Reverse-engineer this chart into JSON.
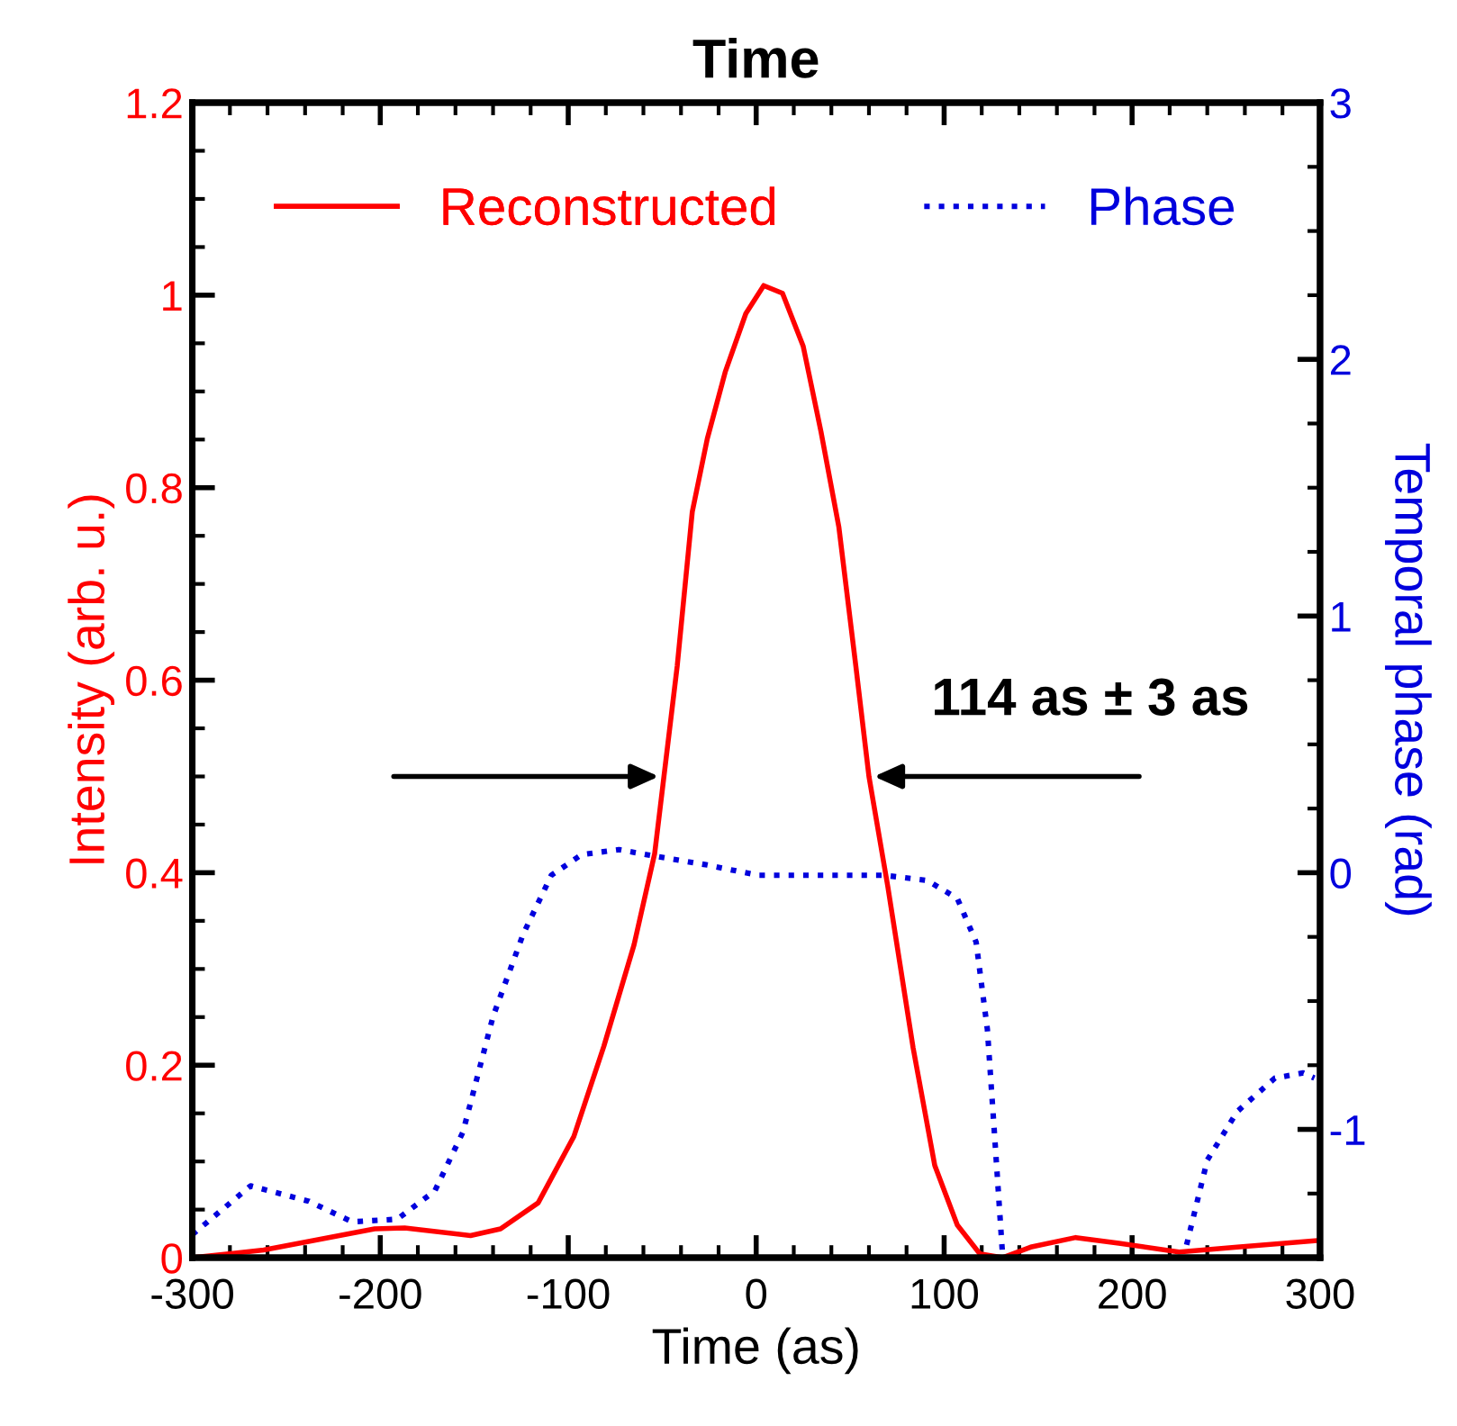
{
  "chart_data": {
    "type": "line",
    "title": "Time",
    "xlabel": "Time (as)",
    "ylabel": "Intensity (arb. u.)",
    "y2label": "Temporal phase (rad)",
    "xlim": [
      -300,
      300
    ],
    "xticks": [
      -300,
      -200,
      -100,
      0,
      100,
      200,
      300
    ],
    "ylim": [
      0,
      1.2
    ],
    "yticks": [
      0,
      0.2,
      0.4,
      0.6,
      0.8,
      1,
      1.2
    ],
    "y2lim": [
      -1.5,
      3
    ],
    "y2ticks": [
      -1,
      0,
      1,
      2,
      3
    ],
    "legend": "top",
    "grid": false,
    "annotations": [
      {
        "text": "114 as ± 3 as",
        "x": 60,
        "y": 0.5
      }
    ],
    "series": [
      {
        "name": "Reconstructed",
        "color": "#ff0000",
        "line_style": "solid",
        "x": [
          -300,
          -262,
          -203,
          -187,
          -152,
          -136,
          -116,
          -97,
          -81,
          -65,
          -54,
          -42,
          -34,
          -26,
          -16.5,
          -5.5,
          4,
          14,
          25,
          34.5,
          44,
          53,
          60,
          70,
          83.5,
          95,
          107,
          119,
          131,
          146,
          170,
          193,
          225,
          256,
          300
        ],
        "values": [
          0,
          0.008,
          0.03,
          0.031,
          0.023,
          0.03,
          0.057,
          0.126,
          0.22,
          0.325,
          0.42,
          0.615,
          0.775,
          0.851,
          0.92,
          0.981,
          1.01,
          1.002,
          0.947,
          0.858,
          0.759,
          0.615,
          0.5,
          0.386,
          0.218,
          0.096,
          0.034,
          0.004,
          0,
          0.011,
          0.021,
          0.015,
          0.006,
          0.011,
          0.018
        ]
      },
      {
        "name": "Phase",
        "color": "#0000dd",
        "line_style": "dotted",
        "axis": "y2",
        "x": [
          -300,
          -269,
          -238,
          -215,
          -191,
          -171,
          -156,
          -140,
          -124,
          -109,
          -93,
          -73,
          -58,
          -26,
          1,
          36,
          68,
          91,
          107,
          117,
          123,
          127,
          131,
          180,
          229,
          240,
          256,
          276,
          291,
          297
        ],
        "values": [
          -1.41,
          -1.22,
          -1.28,
          -1.36,
          -1.35,
          -1.24,
          -1.01,
          -0.56,
          -0.24,
          -0.01,
          0.07,
          0.09,
          0.07,
          0.03,
          -0.01,
          -0.01,
          -0.01,
          -0.03,
          -0.1,
          -0.27,
          -0.61,
          -1.04,
          -1.48,
          null,
          -1.45,
          -1.12,
          -0.93,
          -0.8,
          -0.78,
          -0.8
        ]
      }
    ]
  }
}
